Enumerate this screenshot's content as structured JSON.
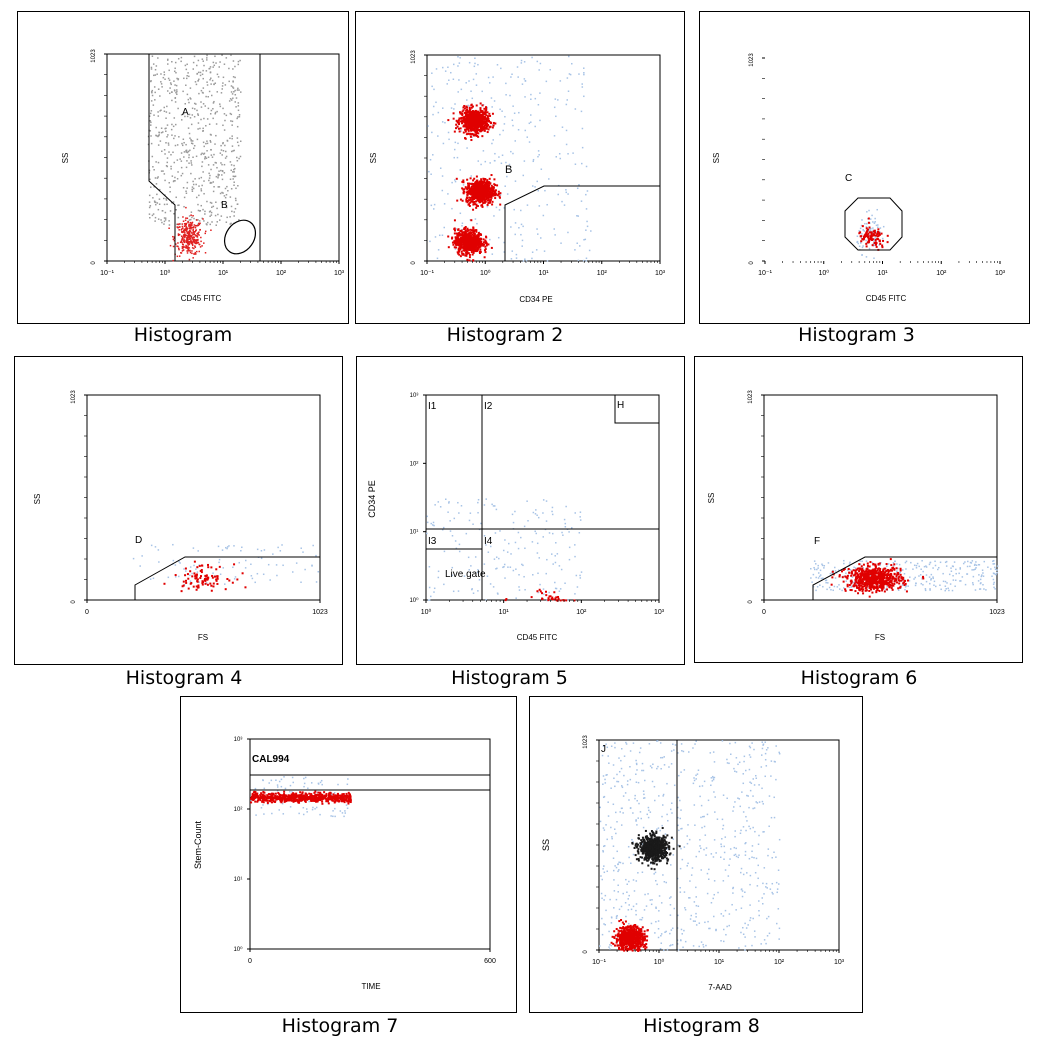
{
  "chart_data": [
    {
      "type": "scatter",
      "caption": "Histogram",
      "xlabel": "CD45 FITC",
      "ylabel": "SS",
      "x_scale": "log",
      "y_scale": "linear",
      "x_ticks": [
        "10⁻¹",
        "10⁰",
        "10¹",
        "10²",
        "10³"
      ],
      "y_ticks": [
        "0",
        "1023"
      ],
      "gates": [
        "A",
        "B"
      ],
      "clusters": [
        {
          "color": "#9a9a9a",
          "x_range_log": [
            -0.3,
            1.3
          ],
          "y_range": [
            180,
            1023
          ],
          "density": "high"
        },
        {
          "color": "#e02020",
          "x_center_log": 0.4,
          "y_center": 120,
          "density": "medium"
        }
      ]
    },
    {
      "type": "scatter",
      "caption": "Histogram 2",
      "xlabel": "CD34 PE",
      "ylabel": "SS",
      "x_scale": "log",
      "y_scale": "linear",
      "x_ticks": [
        "10⁻¹",
        "10⁰",
        "10¹",
        "10²",
        "10³"
      ],
      "y_ticks": [
        "0",
        "1023"
      ],
      "gates": [
        "B"
      ],
      "clusters": [
        {
          "color": "#a7c3e6",
          "x_range_log": [
            -1,
            1.8
          ],
          "y_range": [
            0,
            1023
          ],
          "density": "medium"
        },
        {
          "color": "#e00000",
          "x_center_log": -0.2,
          "y_center": 700,
          "density": "high"
        },
        {
          "color": "#e00000",
          "x_center_log": -0.1,
          "y_center": 350,
          "density": "high"
        },
        {
          "color": "#e00000",
          "x_center_log": -0.3,
          "y_center": 100,
          "density": "high"
        }
      ]
    },
    {
      "type": "scatter",
      "caption": "Histogram 3",
      "xlabel": "CD45 FITC",
      "ylabel": "SS",
      "x_scale": "log",
      "y_scale": "linear",
      "x_ticks": [
        "10⁻¹",
        "10⁰",
        "10¹",
        "10²",
        "10³"
      ],
      "y_ticks": [
        "0",
        "1023"
      ],
      "gates": [
        "C"
      ],
      "clusters": [
        {
          "color": "#a7c3e6",
          "x_center_log": 0.8,
          "y_center": 140,
          "density": "low"
        },
        {
          "color": "#e00000",
          "x_center_log": 0.8,
          "y_center": 120,
          "density": "low"
        }
      ]
    },
    {
      "type": "scatter",
      "caption": "Histogram 4",
      "xlabel": "FS",
      "ylabel": "SS",
      "x_scale": "linear",
      "y_scale": "linear",
      "x_ticks": [
        "0",
        "1023"
      ],
      "y_ticks": [
        "0",
        "1023"
      ],
      "gates": [
        "D"
      ],
      "clusters": [
        {
          "color": "#a7c3e6",
          "x_range": [
            200,
            1023
          ],
          "y_range": [
            80,
            280
          ],
          "density": "low"
        },
        {
          "color": "#e00000",
          "x_center": 500,
          "y_center": 120,
          "density": "low"
        }
      ]
    },
    {
      "type": "scatter",
      "caption": "Histogram 5",
      "xlabel": "CD45 FITC",
      "ylabel": "CD34 PE",
      "x_scale": "log",
      "y_scale": "log",
      "x_ticks": [
        "10⁰",
        "10¹",
        "10²",
        "10³"
      ],
      "y_ticks": [
        "10⁰",
        "10¹",
        "10²",
        "10³"
      ],
      "quadrants": [
        "I1",
        "I2",
        "I3",
        "I4"
      ],
      "gates": [
        "H",
        "Live gate"
      ],
      "clusters": [
        {
          "color": "#a7c3e6",
          "x_range_log": [
            0,
            2
          ],
          "y_range_log": [
            -1,
            1.5
          ],
          "density": "medium"
        },
        {
          "color": "#e00000",
          "x_center_log": 1.0,
          "y_center_log": -0.3,
          "density": "high"
        },
        {
          "color": "#e00000",
          "x_center_log": 1.6,
          "y_center_log": -0.2,
          "density": "high"
        }
      ]
    },
    {
      "type": "scatter",
      "caption": "Histogram 6",
      "xlabel": "FS",
      "ylabel": "SS",
      "x_scale": "linear",
      "y_scale": "linear",
      "x_ticks": [
        "0",
        "1023"
      ],
      "y_ticks": [
        "0",
        "1023"
      ],
      "gates": [
        "F"
      ],
      "clusters": [
        {
          "color": "#a7c3e6",
          "x_range": [
            200,
            1023
          ],
          "y_range": [
            50,
            200
          ],
          "density": "medium"
        },
        {
          "color": "#e00000",
          "x_center": 480,
          "y_center": 110,
          "density": "high"
        }
      ]
    },
    {
      "type": "scatter",
      "caption": "Histogram 7",
      "xlabel": "TIME",
      "ylabel": "Stem-Count",
      "x_scale": "linear",
      "y_scale": "log",
      "x_ticks": [
        "0",
        "600"
      ],
      "y_ticks": [
        "10⁰",
        "10¹",
        "10²",
        "10³"
      ],
      "gates": [
        "CAL994"
      ],
      "clusters": [
        {
          "color": "#a7c3e6",
          "x_range": [
            0,
            250
          ],
          "y_range": [
            80,
            300
          ],
          "density": "low"
        },
        {
          "color": "#e00000",
          "x_range": [
            0,
            250
          ],
          "y_center": 150,
          "density": "high"
        }
      ]
    },
    {
      "type": "scatter",
      "caption": "Histogram 8",
      "xlabel": "7-AAD",
      "ylabel": "SS",
      "x_scale": "log",
      "y_scale": "linear",
      "x_ticks": [
        "10⁻¹",
        "10⁰",
        "10¹",
        "10²",
        "10³"
      ],
      "y_ticks": [
        "0",
        "1023"
      ],
      "gates": [
        "J"
      ],
      "clusters": [
        {
          "color": "#a7c3e6",
          "x_range_log": [
            -1,
            2
          ],
          "y_range": [
            0,
            1023
          ],
          "density": "high"
        },
        {
          "color": "#e00000",
          "x_center_log": -0.5,
          "y_center": 60,
          "density": "high"
        },
        {
          "color": "#1a1a1a",
          "x_center_log": -0.1,
          "y_center": 500,
          "density": "high"
        }
      ]
    }
  ],
  "colors": {
    "background_cloud": "#a7c3e6",
    "dense_core": "#e00000",
    "grey_events": "#9a9a9a",
    "axis": "#000000"
  }
}
